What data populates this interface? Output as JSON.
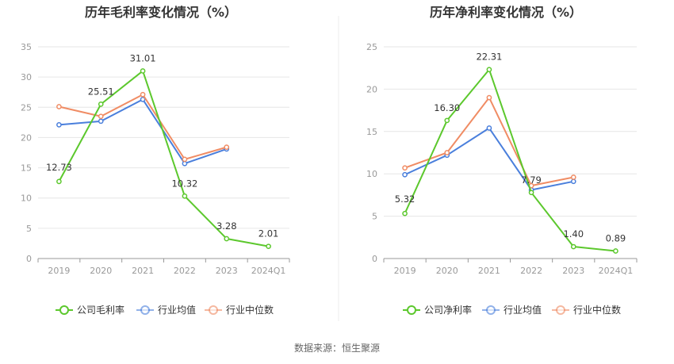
{
  "source_note": "数据来源：恒生聚源",
  "colors": {
    "company": "#5cc82d",
    "avg": "#4a7fdc",
    "median": "#f08c64",
    "grid": "#e6e6e6",
    "axis": "#999999"
  },
  "chart_data": [
    {
      "type": "line",
      "title": "历年毛利率变化情况（%）",
      "categories": [
        "2019",
        "2020",
        "2021",
        "2022",
        "2023",
        "2024Q1"
      ],
      "ylim": [
        0,
        35
      ],
      "yticks": [
        "0",
        "5",
        "10",
        "15",
        "20",
        "25",
        "30",
        "35"
      ],
      "grid": true,
      "legend_position": "bottom",
      "series": [
        {
          "name": "公司毛利率",
          "key": "company",
          "values": [
            12.73,
            25.51,
            31.01,
            10.32,
            3.28,
            2.01
          ],
          "labels": [
            "12.73",
            "25.51",
            "31.01",
            "10.32",
            "3.28",
            "2.01"
          ]
        },
        {
          "name": "行业均值",
          "key": "avg",
          "values": [
            22.1,
            22.7,
            26.3,
            15.7,
            18.1,
            null
          ]
        },
        {
          "name": "行业中位数",
          "key": "median",
          "values": [
            25.1,
            23.5,
            27.1,
            16.4,
            18.4,
            null
          ]
        }
      ]
    },
    {
      "type": "line",
      "title": "历年净利率变化情况（%）",
      "categories": [
        "2019",
        "2020",
        "2021",
        "2022",
        "2023",
        "2024Q1"
      ],
      "ylim": [
        0,
        25
      ],
      "yticks": [
        "0",
        "5",
        "10",
        "15",
        "20",
        "25"
      ],
      "grid": true,
      "legend_position": "bottom",
      "series": [
        {
          "name": "公司净利率",
          "key": "company",
          "values": [
            5.32,
            16.3,
            22.31,
            7.79,
            1.4,
            0.89
          ],
          "labels": [
            "5.32",
            "16.30",
            "22.31",
            "7.79",
            "1.40",
            "0.89"
          ]
        },
        {
          "name": "行业均值",
          "key": "avg",
          "values": [
            9.9,
            12.2,
            15.4,
            8.1,
            9.1,
            null
          ]
        },
        {
          "name": "行业中位数",
          "key": "median",
          "values": [
            10.7,
            12.5,
            19.0,
            8.6,
            9.6,
            null
          ]
        }
      ]
    }
  ]
}
